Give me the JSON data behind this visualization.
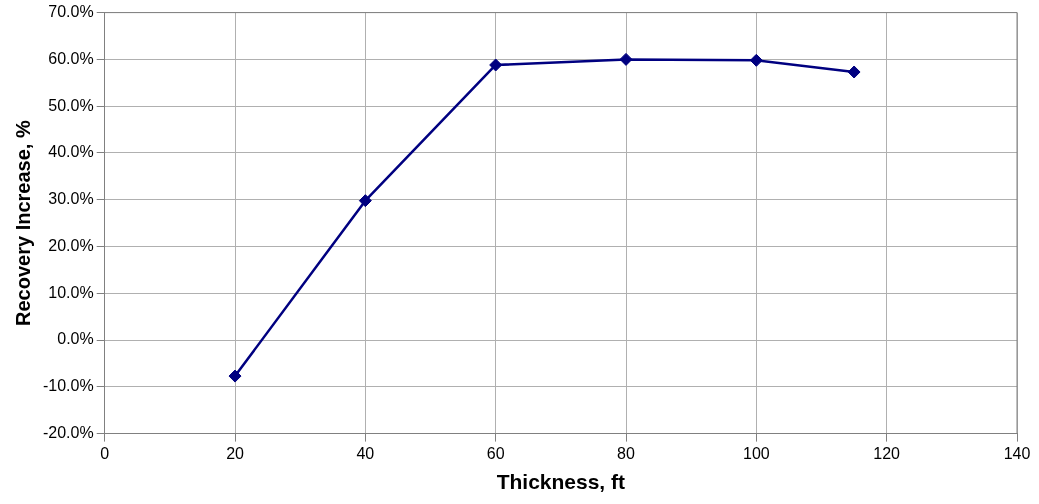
{
  "chart_data": {
    "type": "line",
    "xlabel": "Thickness, ft",
    "ylabel": "Recovery Increase, %",
    "x": [
      20,
      40,
      60,
      80,
      100,
      115
    ],
    "series": [
      {
        "color": "#000080",
        "values": [
          -7.7,
          29.8,
          58.8,
          60.0,
          59.8,
          57.3
        ]
      }
    ],
    "xlim": [
      0,
      140
    ],
    "xticks": [
      0,
      20,
      40,
      60,
      80,
      100,
      120,
      140
    ],
    "ylim": [
      -20,
      70
    ],
    "yticks": [
      {
        "value": -20,
        "label": "-20.0%"
      },
      {
        "value": -10,
        "label": "-10.0%"
      },
      {
        "value": 0,
        "label": "0.0%"
      },
      {
        "value": 10,
        "label": "10.0%"
      },
      {
        "value": 20,
        "label": "20.0%"
      },
      {
        "value": 30,
        "label": "30.0%"
      },
      {
        "value": 40,
        "label": "40.0%"
      },
      {
        "value": 50,
        "label": "50.0%"
      },
      {
        "value": 60,
        "label": "60.0%"
      },
      {
        "value": 70,
        "label": "70.0%"
      }
    ],
    "grid": true,
    "legend": false,
    "marker": "diamond",
    "line_style": "solid"
  }
}
